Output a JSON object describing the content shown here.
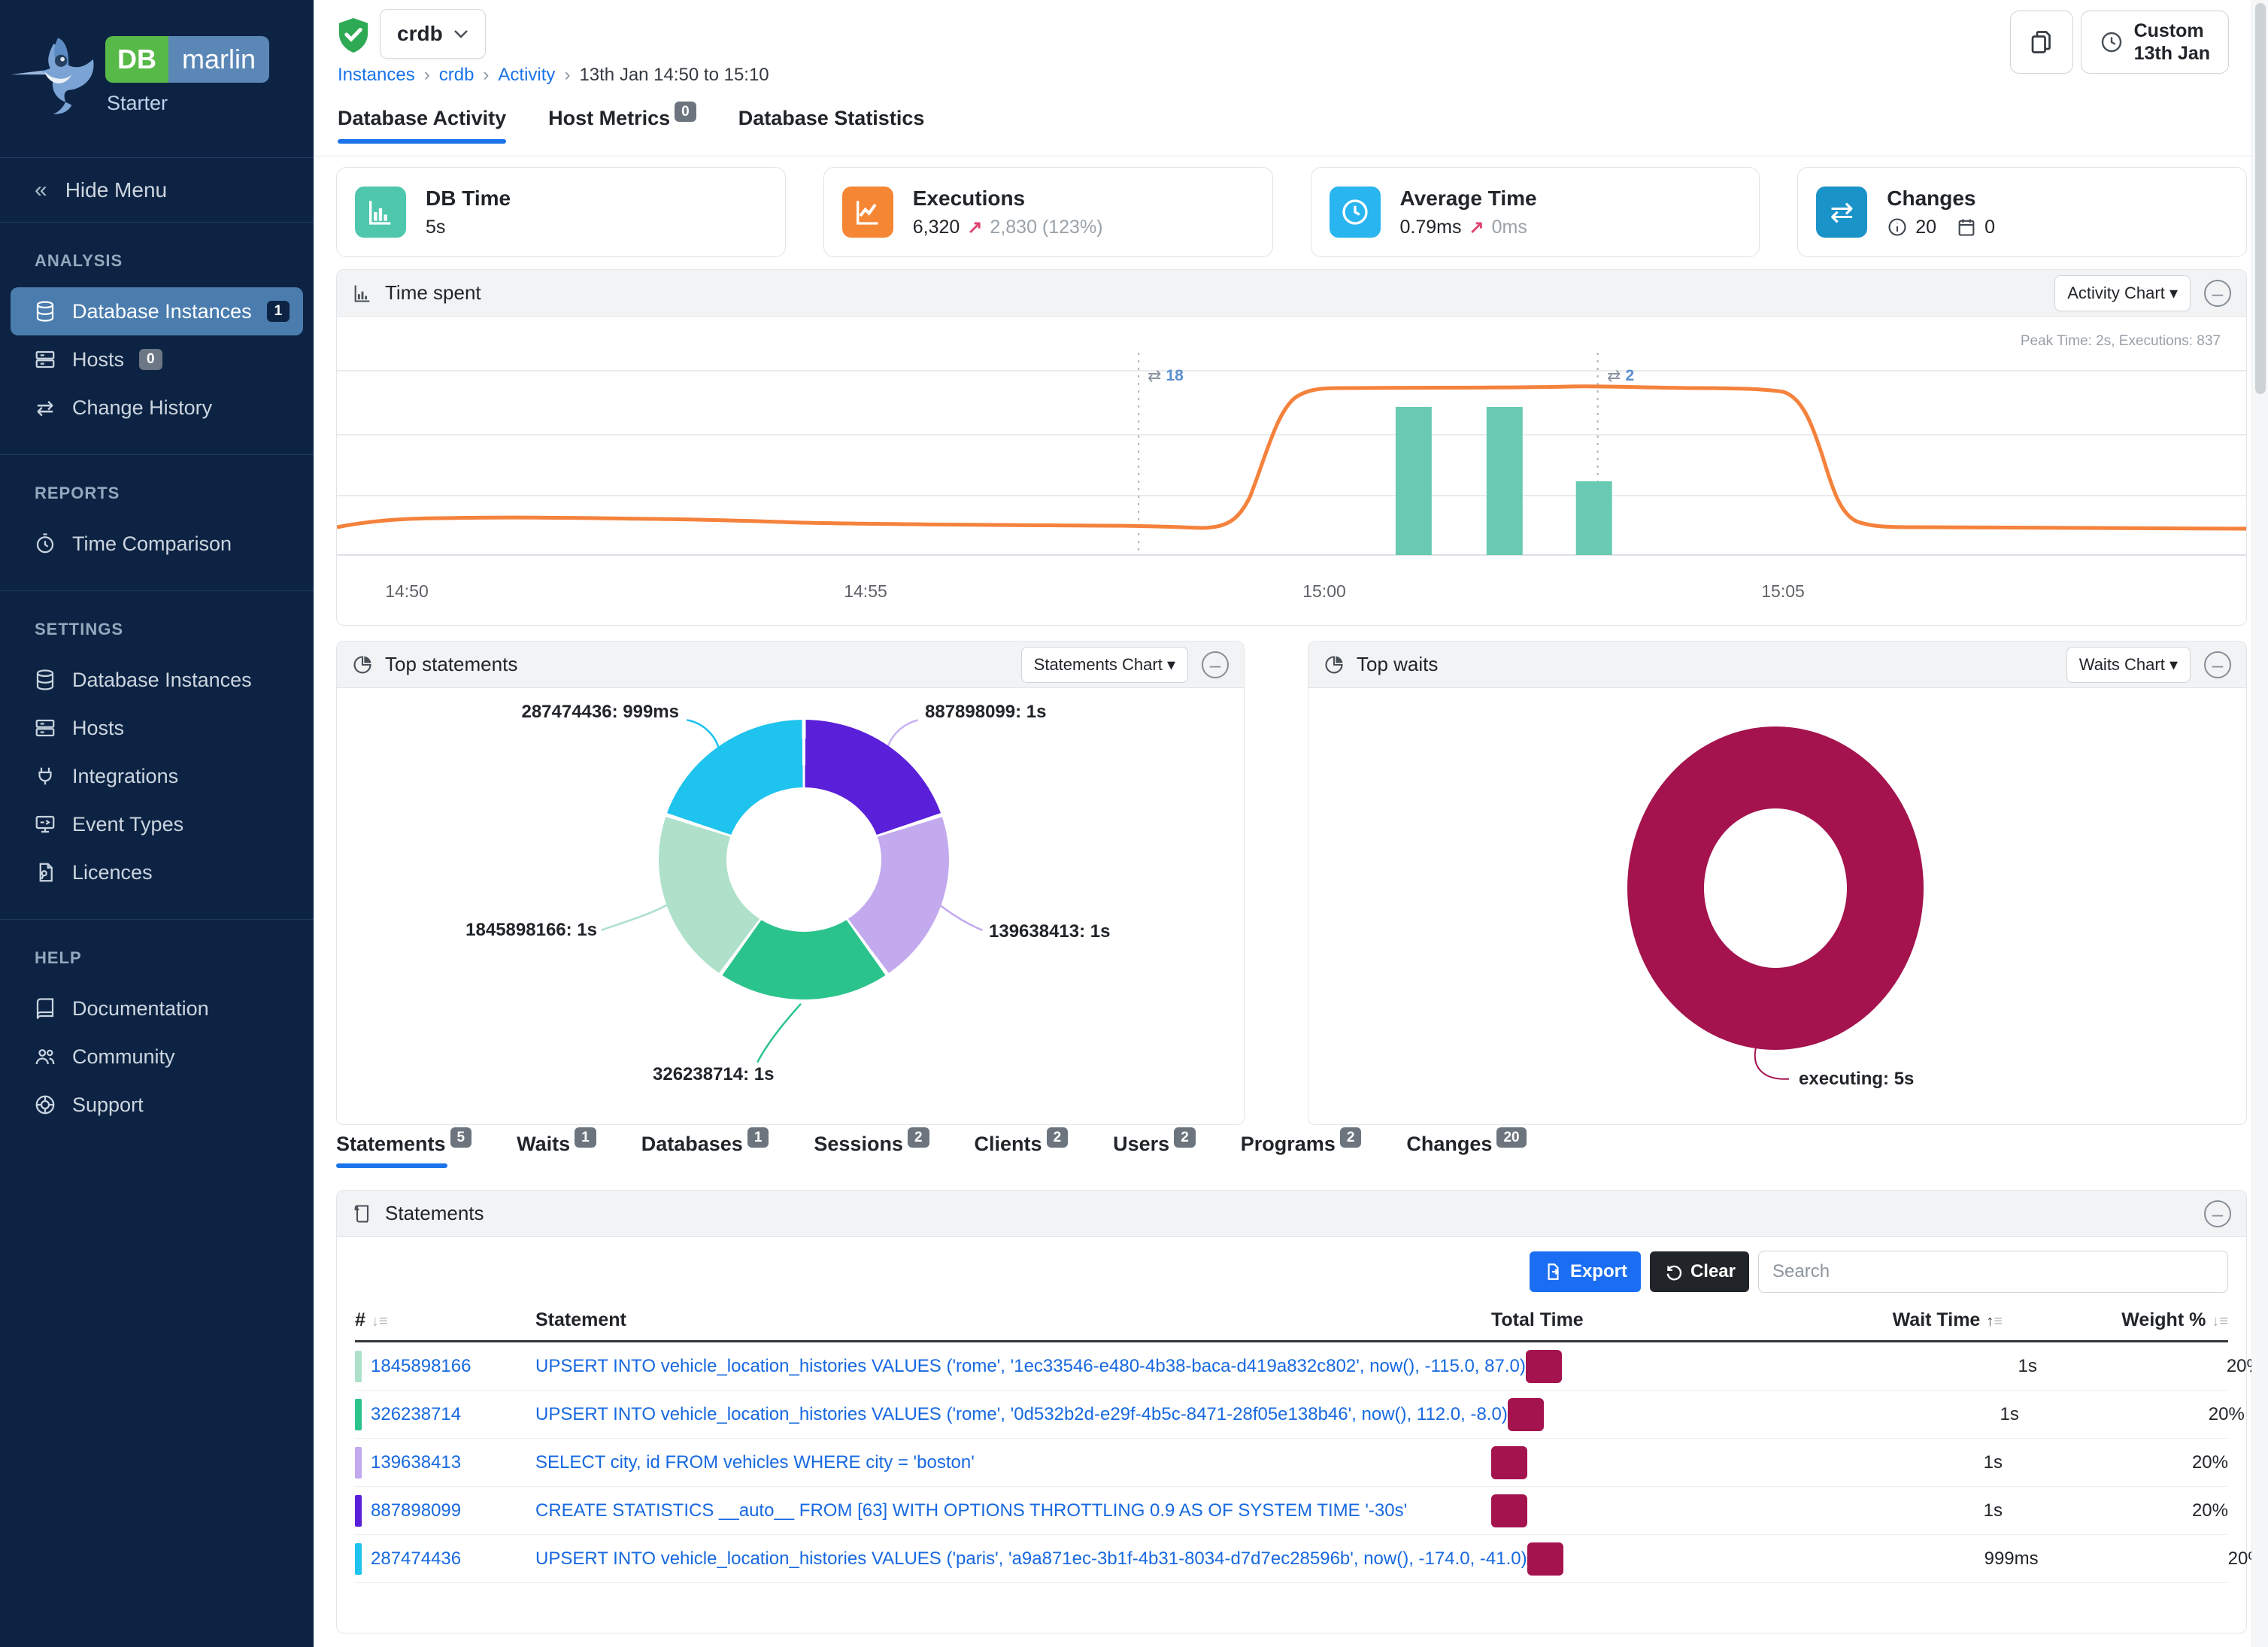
{
  "brand": {
    "db": "DB",
    "marlin": "marlin",
    "tier": "Starter"
  },
  "sidebar": {
    "hide_menu": "Hide Menu",
    "sections": [
      {
        "title": "ANALYSIS",
        "items": [
          {
            "label": "Database Instances",
            "badge": "1"
          },
          {
            "label": "Hosts",
            "badge": "0"
          },
          {
            "label": "Change History"
          }
        ]
      },
      {
        "title": "REPORTS",
        "items": [
          {
            "label": "Time Comparison"
          }
        ]
      },
      {
        "title": "SETTINGS",
        "items": [
          {
            "label": "Database Instances"
          },
          {
            "label": "Hosts"
          },
          {
            "label": "Integrations"
          },
          {
            "label": "Event Types"
          },
          {
            "label": "Licences"
          }
        ]
      },
      {
        "title": "HELP",
        "items": [
          {
            "label": "Documentation"
          },
          {
            "label": "Community"
          },
          {
            "label": "Support"
          }
        ]
      }
    ]
  },
  "header": {
    "instance": "crdb",
    "breadcrumb": {
      "0": "Instances",
      "1": "crdb",
      "2": "Activity",
      "3": "13th Jan 14:50 to 15:10"
    },
    "custom_button": {
      "line1": "Custom",
      "line2": "13th Jan"
    }
  },
  "tabs": {
    "0": {
      "label": "Database Activity"
    },
    "1": {
      "label": "Host Metrics",
      "badge": "0"
    },
    "2": {
      "label": "Database Statistics"
    }
  },
  "cards": {
    "db_time": {
      "title": "DB Time",
      "value": "5s",
      "color": "#4fc7ad"
    },
    "executions": {
      "title": "Executions",
      "value": "6,320",
      "arrow": "↗",
      "delta": "2,830 (123%)",
      "color": "#f58634"
    },
    "average_time": {
      "title": "Average Time",
      "value": "0.79ms",
      "arrow": "↗",
      "delta": "0ms",
      "color": "#29b5f0"
    },
    "changes": {
      "title": "Changes",
      "info_count": "20",
      "event_count": "0",
      "color": "#1a93c8"
    }
  },
  "time_spent": {
    "title": "Time spent",
    "button": "Activity Chart ▾",
    "peak_note": "Peak Time: 2s, Executions: 837"
  },
  "top_statements": {
    "title": "Top statements",
    "button": "Statements Chart ▾"
  },
  "top_waits": {
    "title": "Top waits",
    "button": "Waits Chart ▾"
  },
  "bottom_tabs": {
    "0": {
      "label": "Statements",
      "badge": "5"
    },
    "1": {
      "label": "Waits",
      "badge": "1"
    },
    "2": {
      "label": "Databases",
      "badge": "1"
    },
    "3": {
      "label": "Sessions",
      "badge": "2"
    },
    "4": {
      "label": "Clients",
      "badge": "2"
    },
    "5": {
      "label": "Users",
      "badge": "2"
    },
    "6": {
      "label": "Programs",
      "badge": "2"
    },
    "7": {
      "label": "Changes",
      "badge": "20"
    }
  },
  "statements_panel": {
    "title": "Statements",
    "export_label": "Export",
    "clear_label": "Clear",
    "search_placeholder": "Search",
    "columns": {
      "id": "#",
      "statement": "Statement",
      "total_time": "Total Time",
      "wait_time": "Wait Time",
      "weight": "Weight %"
    },
    "rows": [
      {
        "id": "1845898166",
        "color": "#aee0ca",
        "statement": "UPSERT INTO vehicle_location_histories VALUES ('rome', '1ec33546-e480-4b38-baca-d419a832c802', now(), -115.0, 87.0)",
        "wait_time": "1s",
        "weight": "20%"
      },
      {
        "id": "326238714",
        "color": "#2bc38c",
        "statement": "UPSERT INTO vehicle_location_histories VALUES ('rome', '0d532b2d-e29f-4b5c-8471-28f05e138b46', now(), 112.0, -8.0)",
        "wait_time": "1s",
        "weight": "20%"
      },
      {
        "id": "139638413",
        "color": "#c3a9ee",
        "statement": "SELECT city, id FROM vehicles WHERE city = 'boston'",
        "wait_time": "1s",
        "weight": "20%"
      },
      {
        "id": "887898099",
        "color": "#5a1fd8",
        "statement": "CREATE STATISTICS __auto__ FROM [63] WITH OPTIONS THROTTLING 0.9 AS OF SYSTEM TIME '-30s'",
        "wait_time": "1s",
        "weight": "20%"
      },
      {
        "id": "287474436",
        "color": "#1ec3ee",
        "statement": "UPSERT INTO vehicle_location_histories VALUES ('paris', 'a9a871ec-3b1f-4b31-8034-d7d7ec28596b', now(), -174.0, -41.0)",
        "wait_time": "999ms",
        "weight": "20%"
      }
    ]
  },
  "chart_data": [
    {
      "id": "time_spent",
      "type": "line",
      "title": "Time spent",
      "x_ticks": {
        "0": "14:50",
        "1": "14:55",
        "2": "15:00",
        "3": "15:05"
      },
      "x_range": [
        "14:49",
        "15:09"
      ],
      "line_series": {
        "name": "DB Time (s)",
        "x": [
          "14:49",
          "14:50",
          "14:51",
          "14:52",
          "14:53",
          "14:54",
          "14:55",
          "14:56",
          "14:57",
          "14:58",
          "14:59",
          "15:00",
          "15:01",
          "15:02",
          "15:03",
          "15:04",
          "15:05",
          "15:06",
          "15:07",
          "15:08",
          "15:09"
        ],
        "values": [
          0.38,
          0.4,
          0.41,
          0.41,
          0.4,
          0.4,
          0.39,
          0.38,
          0.37,
          0.5,
          1.6,
          2.0,
          2.0,
          2.0,
          2.0,
          2.0,
          1.2,
          0.34,
          0.33,
          0.33,
          0.33
        ]
      },
      "bar_series": {
        "name": "Executions",
        "x": [
          "15:00",
          "15:01",
          "15:02"
        ],
        "values": [
          830,
          830,
          420
        ]
      },
      "change_markers": [
        {
          "x": "14:59",
          "count": "18"
        },
        {
          "x": "15:04",
          "count": "2"
        }
      ],
      "peak_note": "Peak Time: 2s, Executions: 837",
      "ylim": [
        0,
        2.4
      ],
      "grid": true,
      "legend": false,
      "line_color": "#f5823c",
      "bar_color": "#68cab2"
    },
    {
      "id": "top_statements",
      "type": "pie",
      "title": "Top statements",
      "slices": [
        {
          "text": "887898099: 1s",
          "label": "887898099",
          "value": "1s",
          "percent": 20,
          "color": "#5a1fd8"
        },
        {
          "text": "139638413: 1s",
          "label": "139638413",
          "value": "1s",
          "percent": 20,
          "color": "#c3a9ee"
        },
        {
          "text": "326238714: 1s",
          "label": "326238714",
          "value": "1s",
          "percent": 20,
          "color": "#2bc38c"
        },
        {
          "text": "1845898166: 1s",
          "label": "1845898166",
          "value": "1s",
          "percent": 20,
          "color": "#aee0ca"
        },
        {
          "text": "287474436: 999ms",
          "label": "287474436",
          "value": "999ms",
          "percent": 20,
          "color": "#1ec3ee"
        }
      ]
    },
    {
      "id": "top_waits",
      "type": "pie",
      "title": "Top waits",
      "slices": [
        {
          "text": "executing: 5s",
          "label": "executing",
          "value": "5s",
          "percent": 100,
          "color": "#a4134e"
        }
      ]
    }
  ]
}
